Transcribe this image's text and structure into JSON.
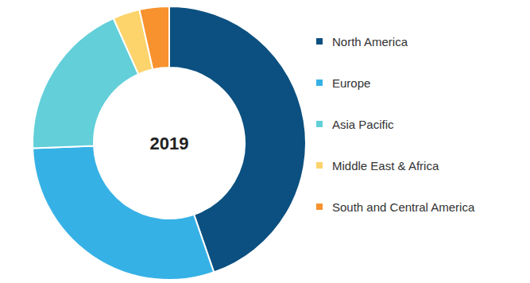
{
  "chart_data": {
    "type": "pie",
    "title": "2019",
    "categories": [
      "North America",
      "Europe",
      "Asia Pacific",
      "Middle East & Africa",
      "South and Central America"
    ],
    "values": [
      44.7,
      29.7,
      18.9,
      3.2,
      3.5
    ],
    "colors": [
      "#0b5080",
      "#36b1e6",
      "#62cfd9",
      "#fdd36b",
      "#f7922e"
    ],
    "legend": "right"
  }
}
